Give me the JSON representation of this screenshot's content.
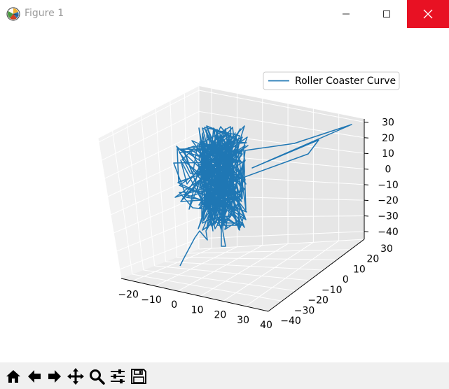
{
  "window": {
    "title": "Figure 1"
  },
  "toolbar": {
    "items": [
      {
        "name": "home-button",
        "icon": "home-icon"
      },
      {
        "name": "back-button",
        "icon": "arrow-left-icon"
      },
      {
        "name": "forward-button",
        "icon": "arrow-right-icon"
      },
      {
        "name": "pan-button",
        "icon": "move-icon"
      },
      {
        "name": "zoom-button",
        "icon": "magnifier-icon"
      },
      {
        "name": "configure-subplots-button",
        "icon": "sliders-icon"
      },
      {
        "name": "save-button",
        "icon": "floppy-icon"
      }
    ]
  },
  "chart_data": {
    "type": "line",
    "projection": "3d",
    "title": "",
    "legend": {
      "entries": [
        "Roller Coaster Curve"
      ],
      "placement": "top-right"
    },
    "grid": true,
    "series": [
      {
        "name": "Roller Coaster Curve",
        "color": "#1f77b4"
      }
    ],
    "x_ticks": [
      "−20",
      "−10",
      "0",
      "10",
      "20",
      "30",
      "40"
    ],
    "y_ticks": [
      "−40",
      "−30",
      "−20",
      "−10",
      "0",
      "10",
      "20",
      "30"
    ],
    "z_ticks": [
      "−40",
      "−30",
      "−20",
      "−10",
      "0",
      "10",
      "20",
      "30"
    ],
    "xlim": [
      -25,
      40
    ],
    "ylim": [
      -40,
      30
    ],
    "zlim": [
      -45,
      32
    ]
  }
}
